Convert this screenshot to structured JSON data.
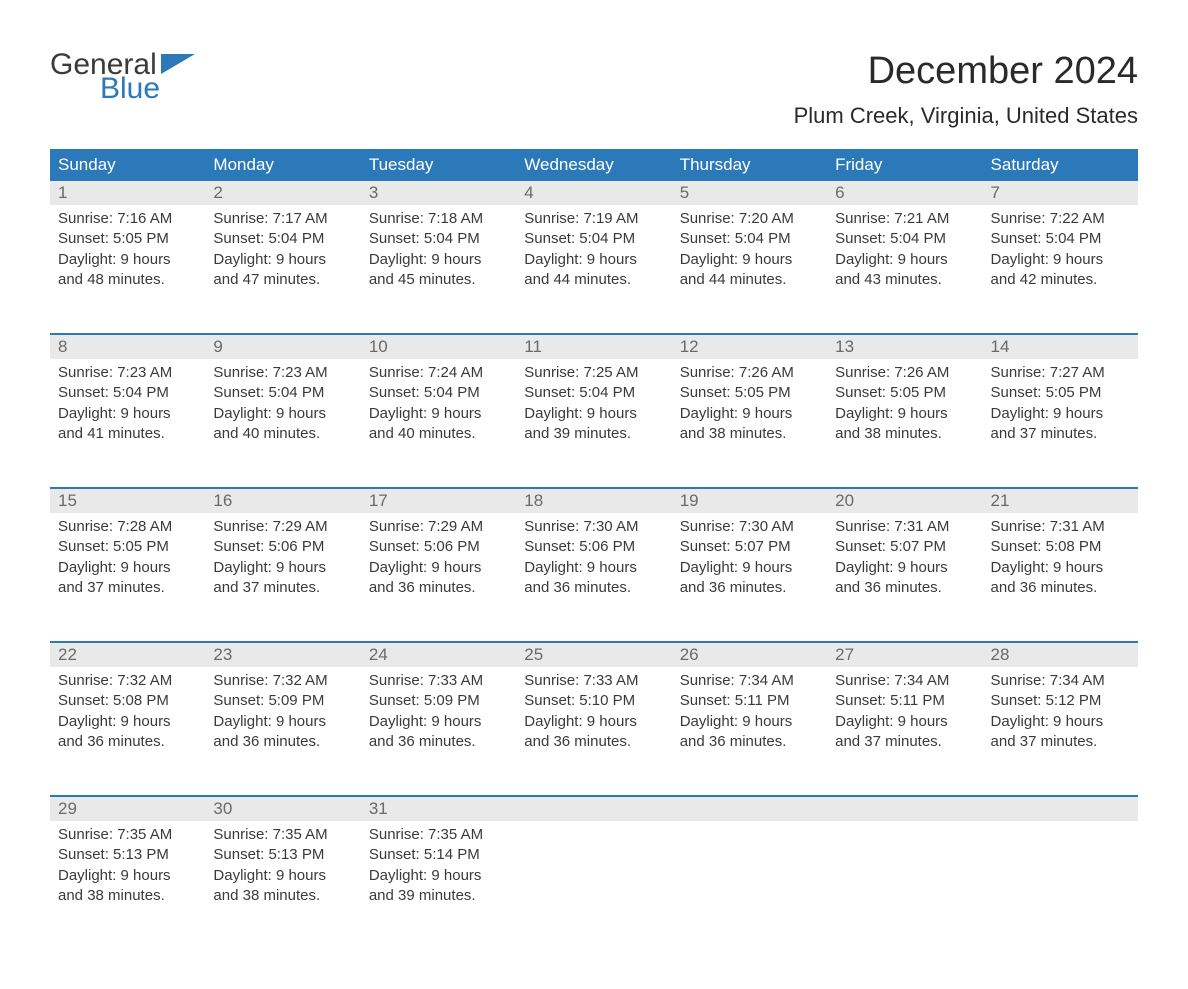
{
  "brand": {
    "general": "General",
    "blue": "Blue"
  },
  "header": {
    "month_title": "December 2024",
    "location": "Plum Creek, Virginia, United States"
  },
  "colors": {
    "header_bg": "#2b79b9",
    "header_text": "#ffffff",
    "daynum_bg": "#e9e9e9",
    "daynum_text": "#6a6a6a",
    "body_text": "#3a3a3a",
    "page_bg": "#ffffff",
    "week_rule": "#2b79b9"
  },
  "typography": {
    "month_title_pt": 38,
    "location_pt": 22,
    "weekday_pt": 17,
    "daynum_pt": 17,
    "cell_pt": 15
  },
  "weekdays": [
    "Sunday",
    "Monday",
    "Tuesday",
    "Wednesday",
    "Thursday",
    "Friday",
    "Saturday"
  ],
  "weeks": [
    [
      {
        "n": "1",
        "sunrise": "Sunrise: 7:16 AM",
        "sunset": "Sunset: 5:05 PM",
        "daylight1": "Daylight: 9 hours",
        "daylight2": "and 48 minutes."
      },
      {
        "n": "2",
        "sunrise": "Sunrise: 7:17 AM",
        "sunset": "Sunset: 5:04 PM",
        "daylight1": "Daylight: 9 hours",
        "daylight2": "and 47 minutes."
      },
      {
        "n": "3",
        "sunrise": "Sunrise: 7:18 AM",
        "sunset": "Sunset: 5:04 PM",
        "daylight1": "Daylight: 9 hours",
        "daylight2": "and 45 minutes."
      },
      {
        "n": "4",
        "sunrise": "Sunrise: 7:19 AM",
        "sunset": "Sunset: 5:04 PM",
        "daylight1": "Daylight: 9 hours",
        "daylight2": "and 44 minutes."
      },
      {
        "n": "5",
        "sunrise": "Sunrise: 7:20 AM",
        "sunset": "Sunset: 5:04 PM",
        "daylight1": "Daylight: 9 hours",
        "daylight2": "and 44 minutes."
      },
      {
        "n": "6",
        "sunrise": "Sunrise: 7:21 AM",
        "sunset": "Sunset: 5:04 PM",
        "daylight1": "Daylight: 9 hours",
        "daylight2": "and 43 minutes."
      },
      {
        "n": "7",
        "sunrise": "Sunrise: 7:22 AM",
        "sunset": "Sunset: 5:04 PM",
        "daylight1": "Daylight: 9 hours",
        "daylight2": "and 42 minutes."
      }
    ],
    [
      {
        "n": "8",
        "sunrise": "Sunrise: 7:23 AM",
        "sunset": "Sunset: 5:04 PM",
        "daylight1": "Daylight: 9 hours",
        "daylight2": "and 41 minutes."
      },
      {
        "n": "9",
        "sunrise": "Sunrise: 7:23 AM",
        "sunset": "Sunset: 5:04 PM",
        "daylight1": "Daylight: 9 hours",
        "daylight2": "and 40 minutes."
      },
      {
        "n": "10",
        "sunrise": "Sunrise: 7:24 AM",
        "sunset": "Sunset: 5:04 PM",
        "daylight1": "Daylight: 9 hours",
        "daylight2": "and 40 minutes."
      },
      {
        "n": "11",
        "sunrise": "Sunrise: 7:25 AM",
        "sunset": "Sunset: 5:04 PM",
        "daylight1": "Daylight: 9 hours",
        "daylight2": "and 39 minutes."
      },
      {
        "n": "12",
        "sunrise": "Sunrise: 7:26 AM",
        "sunset": "Sunset: 5:05 PM",
        "daylight1": "Daylight: 9 hours",
        "daylight2": "and 38 minutes."
      },
      {
        "n": "13",
        "sunrise": "Sunrise: 7:26 AM",
        "sunset": "Sunset: 5:05 PM",
        "daylight1": "Daylight: 9 hours",
        "daylight2": "and 38 minutes."
      },
      {
        "n": "14",
        "sunrise": "Sunrise: 7:27 AM",
        "sunset": "Sunset: 5:05 PM",
        "daylight1": "Daylight: 9 hours",
        "daylight2": "and 37 minutes."
      }
    ],
    [
      {
        "n": "15",
        "sunrise": "Sunrise: 7:28 AM",
        "sunset": "Sunset: 5:05 PM",
        "daylight1": "Daylight: 9 hours",
        "daylight2": "and 37 minutes."
      },
      {
        "n": "16",
        "sunrise": "Sunrise: 7:29 AM",
        "sunset": "Sunset: 5:06 PM",
        "daylight1": "Daylight: 9 hours",
        "daylight2": "and 37 minutes."
      },
      {
        "n": "17",
        "sunrise": "Sunrise: 7:29 AM",
        "sunset": "Sunset: 5:06 PM",
        "daylight1": "Daylight: 9 hours",
        "daylight2": "and 36 minutes."
      },
      {
        "n": "18",
        "sunrise": "Sunrise: 7:30 AM",
        "sunset": "Sunset: 5:06 PM",
        "daylight1": "Daylight: 9 hours",
        "daylight2": "and 36 minutes."
      },
      {
        "n": "19",
        "sunrise": "Sunrise: 7:30 AM",
        "sunset": "Sunset: 5:07 PM",
        "daylight1": "Daylight: 9 hours",
        "daylight2": "and 36 minutes."
      },
      {
        "n": "20",
        "sunrise": "Sunrise: 7:31 AM",
        "sunset": "Sunset: 5:07 PM",
        "daylight1": "Daylight: 9 hours",
        "daylight2": "and 36 minutes."
      },
      {
        "n": "21",
        "sunrise": "Sunrise: 7:31 AM",
        "sunset": "Sunset: 5:08 PM",
        "daylight1": "Daylight: 9 hours",
        "daylight2": "and 36 minutes."
      }
    ],
    [
      {
        "n": "22",
        "sunrise": "Sunrise: 7:32 AM",
        "sunset": "Sunset: 5:08 PM",
        "daylight1": "Daylight: 9 hours",
        "daylight2": "and 36 minutes."
      },
      {
        "n": "23",
        "sunrise": "Sunrise: 7:32 AM",
        "sunset": "Sunset: 5:09 PM",
        "daylight1": "Daylight: 9 hours",
        "daylight2": "and 36 minutes."
      },
      {
        "n": "24",
        "sunrise": "Sunrise: 7:33 AM",
        "sunset": "Sunset: 5:09 PM",
        "daylight1": "Daylight: 9 hours",
        "daylight2": "and 36 minutes."
      },
      {
        "n": "25",
        "sunrise": "Sunrise: 7:33 AM",
        "sunset": "Sunset: 5:10 PM",
        "daylight1": "Daylight: 9 hours",
        "daylight2": "and 36 minutes."
      },
      {
        "n": "26",
        "sunrise": "Sunrise: 7:34 AM",
        "sunset": "Sunset: 5:11 PM",
        "daylight1": "Daylight: 9 hours",
        "daylight2": "and 36 minutes."
      },
      {
        "n": "27",
        "sunrise": "Sunrise: 7:34 AM",
        "sunset": "Sunset: 5:11 PM",
        "daylight1": "Daylight: 9 hours",
        "daylight2": "and 37 minutes."
      },
      {
        "n": "28",
        "sunrise": "Sunrise: 7:34 AM",
        "sunset": "Sunset: 5:12 PM",
        "daylight1": "Daylight: 9 hours",
        "daylight2": "and 37 minutes."
      }
    ],
    [
      {
        "n": "29",
        "sunrise": "Sunrise: 7:35 AM",
        "sunset": "Sunset: 5:13 PM",
        "daylight1": "Daylight: 9 hours",
        "daylight2": "and 38 minutes."
      },
      {
        "n": "30",
        "sunrise": "Sunrise: 7:35 AM",
        "sunset": "Sunset: 5:13 PM",
        "daylight1": "Daylight: 9 hours",
        "daylight2": "and 38 minutes."
      },
      {
        "n": "31",
        "sunrise": "Sunrise: 7:35 AM",
        "sunset": "Sunset: 5:14 PM",
        "daylight1": "Daylight: 9 hours",
        "daylight2": "and 39 minutes."
      },
      null,
      null,
      null,
      null
    ]
  ]
}
